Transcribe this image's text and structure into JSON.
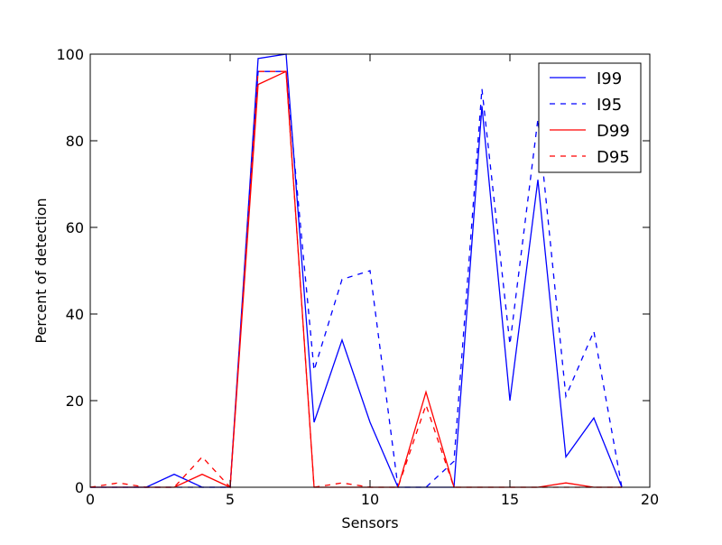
{
  "chart_data": {
    "type": "line",
    "xlabel": "Sensors",
    "ylabel": "Percent of detection",
    "xlim": [
      0,
      20
    ],
    "ylim": [
      0,
      100
    ],
    "xticks": [
      0,
      5,
      10,
      15,
      20
    ],
    "yticks": [
      0,
      20,
      40,
      60,
      80,
      100
    ],
    "xtick_labels": [
      "0",
      "5",
      "10",
      "15",
      "20"
    ],
    "ytick_labels": [
      "0",
      "20",
      "40",
      "60",
      "80",
      "100"
    ],
    "grid": false,
    "legend_position": "top-right",
    "x": [
      0,
      1,
      2,
      3,
      4,
      5,
      6,
      7,
      8,
      9,
      10,
      11,
      12,
      13,
      14,
      15,
      16,
      17,
      18,
      19
    ],
    "series": [
      {
        "name": "I99",
        "color": "#0000ff",
        "dash": "solid",
        "values": [
          0,
          0,
          0,
          3,
          0,
          0,
          99,
          100,
          15,
          34,
          15,
          0,
          0,
          0,
          88,
          20,
          71,
          7,
          16,
          0
        ]
      },
      {
        "name": "I95",
        "color": "#0000ff",
        "dash": "dashed",
        "values": [
          0,
          0,
          0,
          0,
          0,
          0,
          96,
          96,
          27,
          48,
          50,
          0,
          0,
          6,
          92,
          33,
          85,
          21,
          36,
          0
        ]
      },
      {
        "name": "D99",
        "color": "#ff0000",
        "dash": "solid",
        "values": [
          0,
          0,
          0,
          0,
          3,
          0,
          93,
          96,
          0,
          0,
          0,
          0,
          22,
          0,
          0,
          0,
          0,
          1,
          0,
          0
        ]
      },
      {
        "name": "D95",
        "color": "#ff0000",
        "dash": "dashed",
        "values": [
          0,
          1,
          0,
          0,
          7,
          0,
          96,
          96,
          0,
          1,
          0,
          0,
          19,
          0,
          0,
          0,
          0,
          0,
          0,
          0
        ]
      }
    ]
  }
}
